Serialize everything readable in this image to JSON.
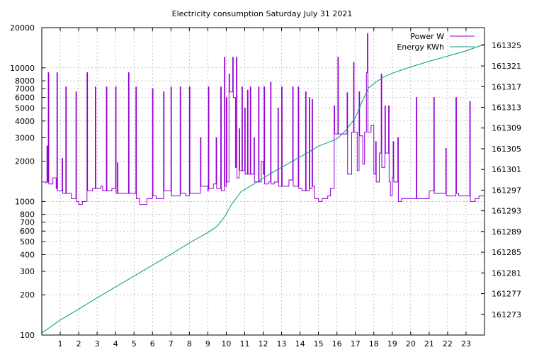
{
  "chart_data": {
    "type": "line",
    "title": "Electricity consumption Saturday July 31 2021",
    "xlabel": "",
    "ylabel": "",
    "y2label": "",
    "x_ticks": [
      1,
      2,
      3,
      4,
      5,
      6,
      7,
      8,
      9,
      10,
      11,
      12,
      13,
      14,
      15,
      16,
      17,
      18,
      19,
      20,
      21,
      22,
      23
    ],
    "xlim": [
      0,
      24
    ],
    "y_scale": "log",
    "ylim": [
      100,
      20000
    ],
    "y_ticks": [
      100,
      200,
      300,
      400,
      500,
      600,
      700,
      800,
      1000,
      2000,
      3000,
      4000,
      5000,
      6000,
      7000,
      8000,
      10000,
      20000
    ],
    "y2lim": [
      161269.0,
      161328.4
    ],
    "y2_ticks": [
      161273,
      161277,
      161281,
      161285,
      161289,
      161293,
      161297,
      161301,
      161305,
      161309,
      161313,
      161317,
      161321,
      161325
    ],
    "grid": true,
    "legend_position": "top-right",
    "colors": {
      "power": "#9400d3",
      "energy": "#009e73",
      "grid": "#a0a0a0"
    },
    "series": [
      {
        "name": "Power W",
        "axis": "y",
        "style": "step",
        "points": [
          [
            0.0,
            1400
          ],
          [
            0.2,
            1380
          ],
          [
            0.28,
            2600
          ],
          [
            0.32,
            1400
          ],
          [
            0.35,
            9200
          ],
          [
            0.38,
            1350
          ],
          [
            0.6,
            1500
          ],
          [
            0.78,
            1250
          ],
          [
            0.82,
            9200
          ],
          [
            0.85,
            1200
          ],
          [
            1.0,
            1200
          ],
          [
            1.1,
            2100
          ],
          [
            1.13,
            1150
          ],
          [
            1.3,
            7200
          ],
          [
            1.33,
            1150
          ],
          [
            1.6,
            1050
          ],
          [
            1.85,
            6600
          ],
          [
            1.88,
            1000
          ],
          [
            2.0,
            950
          ],
          [
            2.2,
            1000
          ],
          [
            2.45,
            9200
          ],
          [
            2.48,
            1200
          ],
          [
            2.75,
            1250
          ],
          [
            2.9,
            7200
          ],
          [
            2.93,
            1250
          ],
          [
            3.2,
            1300
          ],
          [
            3.3,
            1200
          ],
          [
            3.5,
            7200
          ],
          [
            3.53,
            1200
          ],
          [
            3.8,
            1250
          ],
          [
            4.0,
            7200
          ],
          [
            4.03,
            1150
          ],
          [
            4.1,
            1950
          ],
          [
            4.13,
            1150
          ],
          [
            4.55,
            1150
          ],
          [
            4.7,
            9200
          ],
          [
            4.73,
            1150
          ],
          [
            5.0,
            1150
          ],
          [
            5.1,
            7200
          ],
          [
            5.13,
            1050
          ],
          [
            5.3,
            950
          ],
          [
            5.7,
            1050
          ],
          [
            6.0,
            7000
          ],
          [
            6.03,
            1100
          ],
          [
            6.2,
            1050
          ],
          [
            6.6,
            6600
          ],
          [
            6.63,
            1200
          ],
          [
            6.9,
            1200
          ],
          [
            7.0,
            7200
          ],
          [
            7.03,
            1100
          ],
          [
            7.2,
            1100
          ],
          [
            7.5,
            7200
          ],
          [
            7.53,
            1150
          ],
          [
            7.8,
            1100
          ],
          [
            8.0,
            7200
          ],
          [
            8.03,
            1150
          ],
          [
            8.6,
            3000
          ],
          [
            8.63,
            1300
          ],
          [
            9.0,
            1200
          ],
          [
            9.03,
            7200
          ],
          [
            9.06,
            1250
          ],
          [
            9.3,
            1350
          ],
          [
            9.45,
            3000
          ],
          [
            9.48,
            1250
          ],
          [
            9.7,
            7200
          ],
          [
            9.73,
            1200
          ],
          [
            9.9,
            12000
          ],
          [
            9.93,
            1300
          ],
          [
            10.0,
            6000
          ],
          [
            10.03,
            1400
          ],
          [
            10.15,
            9000
          ],
          [
            10.18,
            6600
          ],
          [
            10.35,
            12000
          ],
          [
            10.38,
            6000
          ],
          [
            10.5,
            1800
          ],
          [
            10.55,
            12000
          ],
          [
            10.58,
            1500
          ],
          [
            10.7,
            3500
          ],
          [
            10.73,
            1700
          ],
          [
            10.85,
            7200
          ],
          [
            10.88,
            1700
          ],
          [
            11.0,
            5000
          ],
          [
            11.03,
            1600
          ],
          [
            11.15,
            6800
          ],
          [
            11.18,
            1600
          ],
          [
            11.3,
            7200
          ],
          [
            11.33,
            1600
          ],
          [
            11.5,
            3000
          ],
          [
            11.53,
            1400
          ],
          [
            11.75,
            7200
          ],
          [
            11.78,
            1400
          ],
          [
            11.9,
            2000
          ],
          [
            12.0,
            1600
          ],
          [
            12.05,
            7200
          ],
          [
            12.08,
            1350
          ],
          [
            12.3,
            1400
          ],
          [
            12.4,
            7800
          ],
          [
            12.43,
            1350
          ],
          [
            12.6,
            1400
          ],
          [
            12.8,
            5000
          ],
          [
            12.83,
            1300
          ],
          [
            13.0,
            7200
          ],
          [
            13.03,
            1300
          ],
          [
            13.4,
            1450
          ],
          [
            13.6,
            7200
          ],
          [
            13.63,
            1300
          ],
          [
            13.9,
            7200
          ],
          [
            13.93,
            1250
          ],
          [
            14.1,
            1200
          ],
          [
            14.3,
            6600
          ],
          [
            14.33,
            1200
          ],
          [
            14.5,
            6000
          ],
          [
            14.53,
            1250
          ],
          [
            14.65,
            5800
          ],
          [
            14.68,
            1300
          ],
          [
            14.8,
            1050
          ],
          [
            15.0,
            1000
          ],
          [
            15.2,
            1050
          ],
          [
            15.5,
            1100
          ],
          [
            15.65,
            1250
          ],
          [
            15.85,
            5200
          ],
          [
            15.88,
            3200
          ],
          [
            16.05,
            12000
          ],
          [
            16.08,
            3200
          ],
          [
            16.3,
            3200
          ],
          [
            16.55,
            6500
          ],
          [
            16.58,
            1600
          ],
          [
            16.8,
            3300
          ],
          [
            16.9,
            11000
          ],
          [
            16.93,
            3300
          ],
          [
            17.1,
            1700
          ],
          [
            17.2,
            6600
          ],
          [
            17.23,
            3100
          ],
          [
            17.4,
            1900
          ],
          [
            17.5,
            3300
          ],
          [
            17.6,
            9200
          ],
          [
            17.65,
            18000
          ],
          [
            17.68,
            3300
          ],
          [
            17.85,
            3700
          ],
          [
            18.0,
            1600
          ],
          [
            18.1,
            2800
          ],
          [
            18.13,
            1400
          ],
          [
            18.3,
            2300
          ],
          [
            18.4,
            9000
          ],
          [
            18.43,
            1800
          ],
          [
            18.6,
            5200
          ],
          [
            18.63,
            2300
          ],
          [
            18.8,
            5200
          ],
          [
            18.83,
            1400
          ],
          [
            18.9,
            1100
          ],
          [
            19.0,
            1500
          ],
          [
            19.05,
            2800
          ],
          [
            19.08,
            1400
          ],
          [
            19.3,
            3000
          ],
          [
            19.33,
            1000
          ],
          [
            19.5,
            1050
          ],
          [
            20.0,
            1050
          ],
          [
            20.3,
            6000
          ],
          [
            20.33,
            1050
          ],
          [
            20.8,
            1050
          ],
          [
            21.0,
            1200
          ],
          [
            21.25,
            6000
          ],
          [
            21.28,
            1150
          ],
          [
            21.6,
            1150
          ],
          [
            21.9,
            2500
          ],
          [
            21.93,
            1100
          ],
          [
            22.2,
            1100
          ],
          [
            22.45,
            6000
          ],
          [
            22.48,
            1150
          ],
          [
            22.6,
            1100
          ],
          [
            23.0,
            1100
          ],
          [
            23.2,
            5600
          ],
          [
            23.23,
            1000
          ],
          [
            23.5,
            1050
          ],
          [
            23.7,
            1100
          ],
          [
            24.0,
            1100
          ]
        ]
      },
      {
        "name": "Energy KWh",
        "axis": "y2",
        "style": "line",
        "points": [
          [
            0.0,
            161269.4
          ],
          [
            1.0,
            161271.9
          ],
          [
            2.0,
            161274.0
          ],
          [
            3.0,
            161276.2
          ],
          [
            4.0,
            161278.3
          ],
          [
            5.0,
            161280.4
          ],
          [
            6.0,
            161282.5
          ],
          [
            7.0,
            161284.6
          ],
          [
            8.0,
            161286.8
          ],
          [
            9.0,
            161288.8
          ],
          [
            9.5,
            161290.0
          ],
          [
            9.9,
            161291.8
          ],
          [
            10.3,
            161294.3
          ],
          [
            10.8,
            161296.7
          ],
          [
            11.5,
            161298.2
          ],
          [
            12.5,
            161300.4
          ],
          [
            13.5,
            161302.4
          ],
          [
            14.5,
            161304.4
          ],
          [
            15.0,
            161305.5
          ],
          [
            15.5,
            161306.2
          ],
          [
            16.0,
            161306.9
          ],
          [
            16.5,
            161308.6
          ],
          [
            17.0,
            161311.0
          ],
          [
            17.3,
            161313.6
          ],
          [
            17.7,
            161316.7
          ],
          [
            18.0,
            161317.6
          ],
          [
            18.5,
            161318.8
          ],
          [
            19.0,
            161319.6
          ],
          [
            19.5,
            161320.2
          ],
          [
            20.0,
            161320.8
          ],
          [
            21.0,
            161321.9
          ],
          [
            22.0,
            161322.9
          ],
          [
            23.0,
            161323.9
          ],
          [
            24.0,
            161325.2
          ]
        ]
      }
    ]
  }
}
